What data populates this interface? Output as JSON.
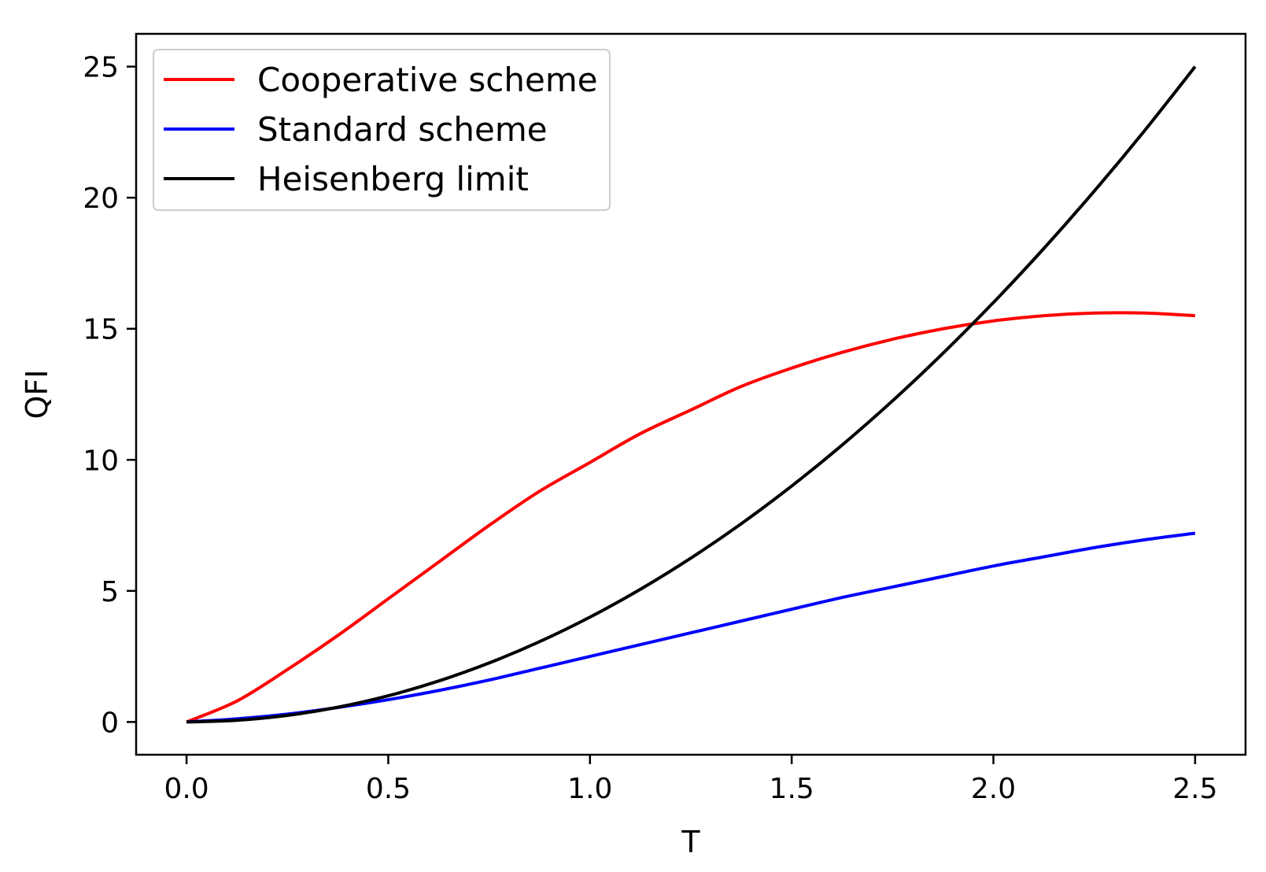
{
  "chart_data": {
    "type": "line",
    "title": "",
    "xlabel": "T",
    "ylabel": "QFI",
    "xlim": [
      -0.125,
      2.625
    ],
    "ylim": [
      -1.25,
      26.25
    ],
    "xticks": [
      0.0,
      0.5,
      1.0,
      1.5,
      2.0,
      2.5
    ],
    "xtick_labels": [
      "0.0",
      "0.5",
      "1.0",
      "1.5",
      "2.0",
      "2.5"
    ],
    "yticks": [
      0,
      5,
      10,
      15,
      20,
      25
    ],
    "ytick_labels": [
      "0",
      "5",
      "10",
      "15",
      "20",
      "25"
    ],
    "grid": false,
    "legend_position": "top-left",
    "x": [
      0.0,
      0.125,
      0.25,
      0.375,
      0.5,
      0.625,
      0.75,
      0.875,
      1.0,
      1.125,
      1.25,
      1.375,
      1.5,
      1.625,
      1.75,
      1.875,
      2.0,
      2.125,
      2.25,
      2.375,
      2.5
    ],
    "series": [
      {
        "name": "Cooperative scheme",
        "color": "#ff0000",
        "values": [
          0.0,
          0.8,
          2.0,
          3.3,
          4.7,
          6.1,
          7.5,
          8.8,
          9.9,
          11.0,
          11.9,
          12.8,
          13.5,
          14.1,
          14.6,
          15.0,
          15.3,
          15.5,
          15.6,
          15.6,
          15.5
        ]
      },
      {
        "name": "Standard scheme",
        "color": "#0000ff",
        "values": [
          0.0,
          0.12,
          0.3,
          0.55,
          0.85,
          1.2,
          1.6,
          2.05,
          2.5,
          2.95,
          3.4,
          3.85,
          4.3,
          4.75,
          5.15,
          5.55,
          5.95,
          6.3,
          6.65,
          6.95,
          7.2
        ]
      },
      {
        "name": "Heisenberg limit",
        "color": "#000000",
        "values": [
          0.0,
          0.0625,
          0.25,
          0.5625,
          1.0,
          1.5625,
          2.25,
          3.0625,
          4.0,
          5.0625,
          6.25,
          7.5625,
          9.0,
          10.5625,
          12.25,
          14.0625,
          16.0,
          18.0625,
          20.25,
          22.5625,
          25.0
        ]
      }
    ]
  }
}
